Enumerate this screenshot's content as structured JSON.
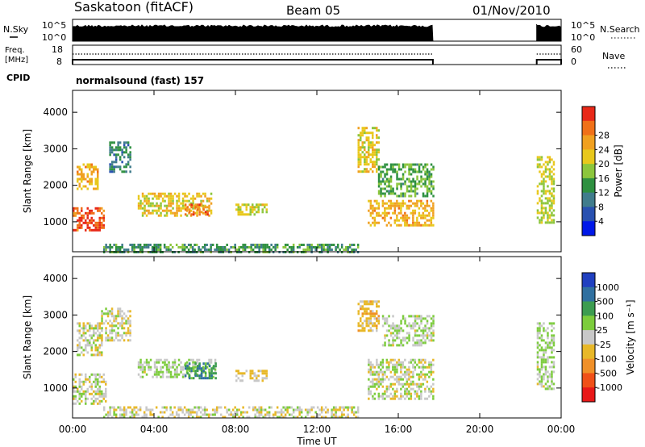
{
  "header": {
    "station": "Saskatoon (fitACF)",
    "beam": "Beam 05",
    "date": "01/Nov/2010"
  },
  "status_panels": {
    "nsky_label": "N.Sky",
    "nsky_ticks": [
      "10^5",
      "10^0"
    ],
    "nsearch_label": "N.Search",
    "nsearch_ticks": [
      "10^5",
      "10^0"
    ],
    "freq_label_1": "Freq.",
    "freq_label_2": "[MHz]",
    "freq_ticks": [
      "18",
      "8"
    ],
    "nave_label": "Nave",
    "nave_ticks": [
      "60",
      "0"
    ],
    "cpid_label": "CPID",
    "cpid_text": "normalsound (fast) 157"
  },
  "x_axis": {
    "label": "Time UT",
    "ticks": [
      "00:00",
      "04:00",
      "08:00",
      "12:00",
      "16:00",
      "20:00",
      "00:00"
    ]
  },
  "power_panel": {
    "ylabel": "Slant Range [km]",
    "yticks": [
      "1000",
      "2000",
      "3000",
      "4000"
    ],
    "colorbar_label": "Power [dB]",
    "colorbar_ticks": [
      "4",
      "8",
      "12",
      "16",
      "20",
      "24",
      "28"
    ],
    "colorbar_colors": [
      "#0018e8",
      "#2850b0",
      "#407c8c",
      "#2e9040",
      "#8cc63c",
      "#e8c81c",
      "#f0a020",
      "#f07018",
      "#e82818"
    ]
  },
  "velocity_panel": {
    "ylabel": "Slant Range [km]",
    "yticks": [
      "1000",
      "2000",
      "3000",
      "4000"
    ],
    "colorbar_label": "Velocity [m s⁻¹]",
    "colorbar_ticks": [
      "1000",
      "500",
      "100",
      "25",
      "-25",
      "-100",
      "-500",
      "-1000"
    ],
    "colorbar_colors": [
      "#2040c0",
      "#3070a0",
      "#3c9c50",
      "#7ccc3c",
      "#c8c8c8",
      "#e8b828",
      "#f09028",
      "#f05018",
      "#e81818"
    ]
  },
  "chart_data": [
    {
      "type": "heatmap",
      "title": "Power",
      "xlabel": "Time UT",
      "ylabel": "Slant Range [km]",
      "xlim": [
        0,
        24
      ],
      "ylim": [
        180,
        4600
      ],
      "colorbar": {
        "label": "Power [dB]",
        "range": [
          0,
          32
        ]
      },
      "regions": [
        {
          "t": [
            0.0,
            1.5
          ],
          "r": [
            800,
            1400
          ],
          "value": 28
        },
        {
          "t": [
            0.2,
            1.2
          ],
          "r": [
            1900,
            2600
          ],
          "value": 22
        },
        {
          "t": [
            1.8,
            2.8
          ],
          "r": [
            2400,
            3200
          ],
          "value": 10
        },
        {
          "t": [
            3.2,
            6.8
          ],
          "r": [
            1200,
            1800
          ],
          "value": 20
        },
        {
          "t": [
            5.5,
            6.6
          ],
          "r": [
            1200,
            1500
          ],
          "value": 26
        },
        {
          "t": [
            8.0,
            9.5
          ],
          "r": [
            1200,
            1500
          ],
          "value": 18
        },
        {
          "t": [
            1.5,
            14.0
          ],
          "r": [
            200,
            400
          ],
          "value": 12
        },
        {
          "t": [
            14.0,
            15.0
          ],
          "r": [
            2400,
            3600
          ],
          "value": 20
        },
        {
          "t": [
            14.5,
            17.7
          ],
          "r": [
            900,
            1600
          ],
          "value": 22
        },
        {
          "t": [
            15.0,
            17.7
          ],
          "r": [
            1700,
            2600
          ],
          "value": 14
        },
        {
          "t": [
            22.8,
            23.6
          ],
          "r": [
            1000,
            2800
          ],
          "value": 18
        }
      ]
    },
    {
      "type": "heatmap",
      "title": "Velocity",
      "xlabel": "Time UT",
      "ylabel": "Slant Range [km]",
      "xlim": [
        0,
        24
      ],
      "ylim": [
        180,
        4600
      ],
      "colorbar": {
        "label": "Velocity [m s-1]",
        "range": [
          -1000,
          1000
        ]
      },
      "regions": [
        {
          "t": [
            0.0,
            1.6
          ],
          "r": [
            600,
            1400
          ],
          "value": 0
        },
        {
          "t": [
            0.2,
            1.4
          ],
          "r": [
            1900,
            2800
          ],
          "value": 0
        },
        {
          "t": [
            1.4,
            2.8
          ],
          "r": [
            2300,
            3200
          ],
          "value": 0
        },
        {
          "t": [
            3.2,
            7.0
          ],
          "r": [
            1300,
            1800
          ],
          "value": 100
        },
        {
          "t": [
            5.5,
            7.0
          ],
          "r": [
            1300,
            1700
          ],
          "value": 500
        },
        {
          "t": [
            8.0,
            9.5
          ],
          "r": [
            1200,
            1500
          ],
          "value": -100
        },
        {
          "t": [
            1.5,
            14.0
          ],
          "r": [
            200,
            500
          ],
          "value": -25
        },
        {
          "t": [
            14.0,
            15.0
          ],
          "r": [
            2600,
            3400
          ],
          "value": -200
        },
        {
          "t": [
            14.5,
            17.7
          ],
          "r": [
            700,
            1800
          ],
          "value": 0
        },
        {
          "t": [
            15.2,
            17.7
          ],
          "r": [
            2200,
            3000
          ],
          "value": 100
        },
        {
          "t": [
            22.8,
            23.6
          ],
          "r": [
            1000,
            2800
          ],
          "value": 100
        }
      ]
    }
  ]
}
